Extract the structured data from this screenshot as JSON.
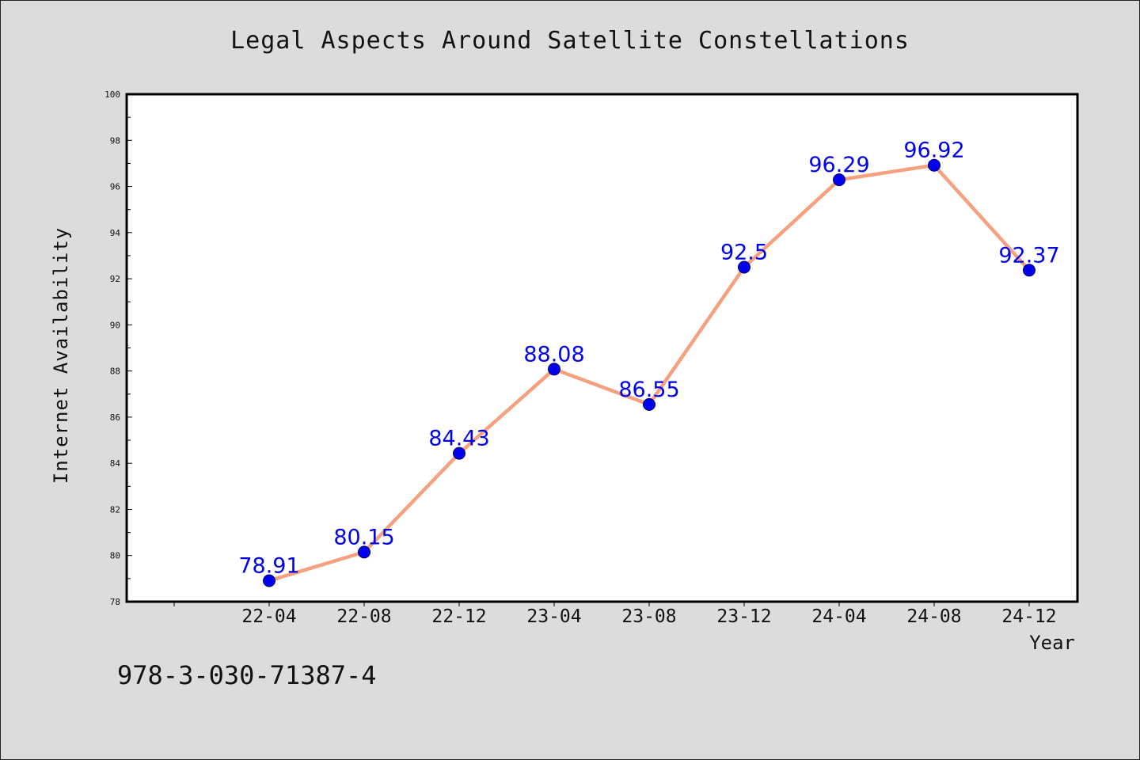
{
  "chart_data": {
    "type": "line",
    "title": "Legal Aspects Around Satellite Constellations",
    "xlabel": "Year",
    "ylabel": "Internet Availability",
    "categories": [
      "22-04",
      "22-08",
      "22-12",
      "23-04",
      "23-08",
      "23-12",
      "24-04",
      "24-08",
      "24-12"
    ],
    "series": [
      {
        "values": [
          78.91,
          80.15,
          84.43,
          88.08,
          86.55,
          92.5,
          96.29,
          96.92,
          92.37
        ],
        "labels": [
          "78.91",
          "80.15",
          "84.43",
          "88.08",
          "86.55",
          "92.5",
          "96.29",
          "96.92",
          "92.37"
        ],
        "line_color": "#f5a07e",
        "marker_color": "#0000ee"
      }
    ],
    "ylim": [
      78,
      100
    ],
    "yticks": [
      78,
      80,
      82,
      84,
      86,
      88,
      90,
      92,
      94,
      96,
      98,
      100
    ],
    "grid": false,
    "legend": "none"
  },
  "footer": {
    "code": "978-3-030-71387-4"
  },
  "colors": {
    "background": "#dcdcdc",
    "plot_area": "#ffffff",
    "data_label": "#0000ee"
  }
}
